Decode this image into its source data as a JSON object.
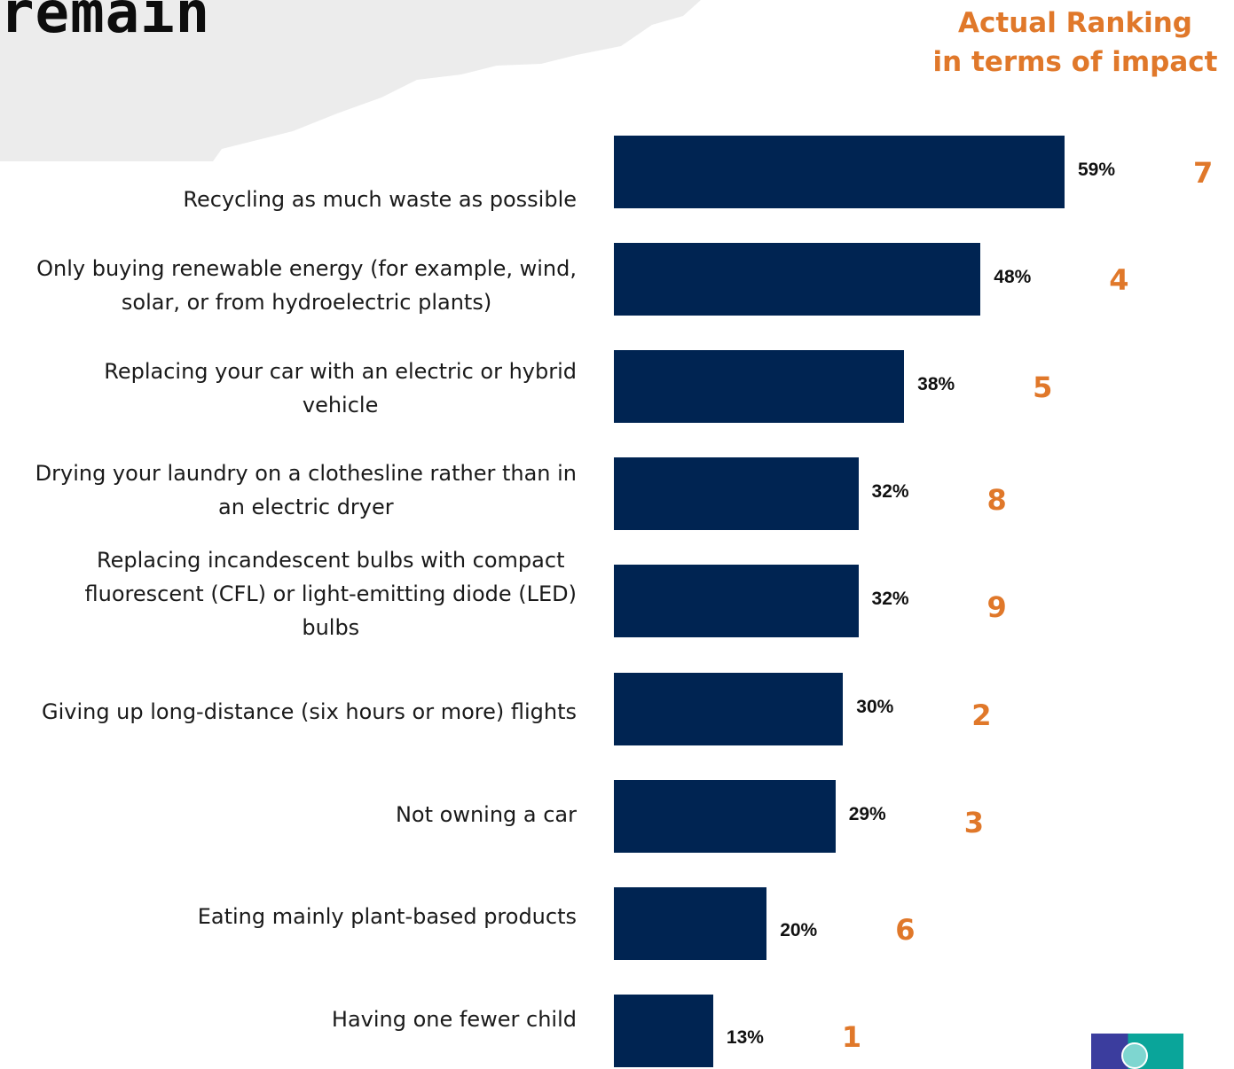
{
  "header": {
    "title_fragment": "remain",
    "ranking_heading_line1": "Actual Ranking",
    "ranking_heading_line2": "in terms of impact"
  },
  "colors": {
    "bar": "#002452",
    "rank_text": "#e0782a",
    "background_shape": "#ececec"
  },
  "chart_data": {
    "type": "bar",
    "orientation": "horizontal",
    "categories": [
      "Recycling as much waste as possible",
      "Only buying renewable energy (for example, wind,\nsolar, or from hydroelectric plants)",
      "Replacing your car with an electric or hybrid\nvehicle",
      "Drying your laundry on a clothesline rather than in\nan electric dryer",
      "Replacing incandescent bulbs with compact\nfluorescent (CFL) or light-emitting diode (LED)\nbulbs",
      "Giving up long-distance (six hours or more) flights",
      "Not owning a car",
      "Eating mainly plant-based products",
      "Having one fewer child"
    ],
    "values": [
      59,
      48,
      38,
      32,
      32,
      30,
      29,
      20,
      13
    ],
    "value_labels": [
      "59%",
      "48%",
      "38%",
      "32%",
      "32%",
      "30%",
      "29%",
      "20%",
      "13%"
    ],
    "actual_ranking": [
      "7",
      "4",
      "5",
      "8",
      "9",
      "2",
      "3",
      "6",
      "1"
    ],
    "xlim": [
      0,
      100
    ],
    "grid": false,
    "legend": "none"
  }
}
